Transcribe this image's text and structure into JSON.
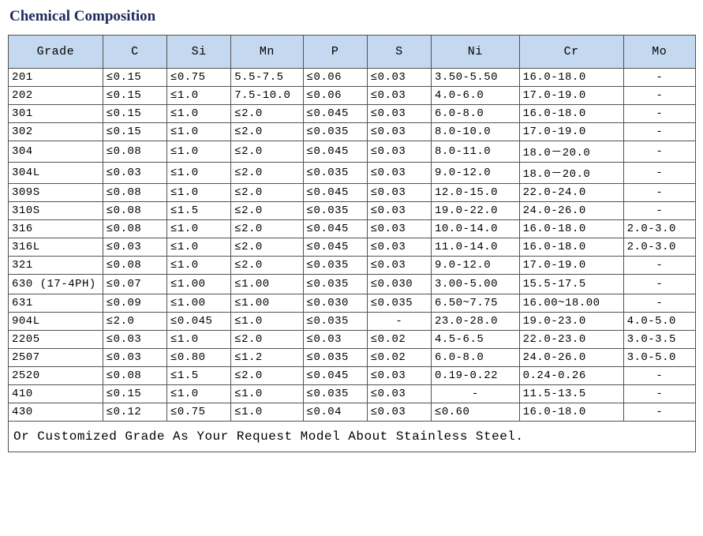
{
  "title": "Chemical Composition",
  "footer": "Or Customized Grade As Your Request Model About Stainless Steel.",
  "columns": [
    "Grade",
    "C",
    "Si",
    "Mn",
    "P",
    "S",
    "Ni",
    "Cr",
    "Mo"
  ],
  "rows": [
    {
      "g": "201",
      "c": "≤0.15",
      "si": "≤0.75",
      "mn": "5.5-7.5",
      "p": "≤0.06",
      "s": "≤0.03",
      "ni": "3.50-5.50",
      "cr": "16.0-18.0",
      "mo": "-"
    },
    {
      "g": "202",
      "c": "≤0.15",
      "si": "≤1.0",
      "mn": "7.5-10.0",
      "p": "≤0.06",
      "s": "≤0.03",
      "ni": "4.0-6.0",
      "cr": "17.0-19.0",
      "mo": "-"
    },
    {
      "g": "301",
      "c": "≤0.15",
      "si": "≤1.0",
      "mn": "≤2.0",
      "p": "≤0.045",
      "s": "≤0.03",
      "ni": "6.0-8.0",
      "cr": "16.0-18.0",
      "mo": "-"
    },
    {
      "g": "302",
      "c": "≤0.15",
      "si": "≤1.0",
      "mn": "≤2.0",
      "p": "≤0.035",
      "s": "≤0.03",
      "ni": "8.0-10.0",
      "cr": "17.0-19.0",
      "mo": "-"
    },
    {
      "g": "304",
      "c": "≤0.08",
      "si": "≤1.0",
      "mn": "≤2.0",
      "p": "≤0.045",
      "s": "≤0.03",
      "ni": "8.0-11.0",
      "cr": "18.0－20.0",
      "mo": "-"
    },
    {
      "g": "304L",
      "c": "≤0.03",
      "si": "≤1.0",
      "mn": "≤2.0",
      "p": "≤0.035",
      "s": "≤0.03",
      "ni": "9.0-12.0",
      "cr": "18.0－20.0",
      "mo": "-"
    },
    {
      "g": "309S",
      "c": "≤0.08",
      "si": "≤1.0",
      "mn": "≤2.0",
      "p": "≤0.045",
      "s": "≤0.03",
      "ni": "12.0-15.0",
      "cr": "22.0-24.0",
      "mo": "-"
    },
    {
      "g": "310S",
      "c": "≤0.08",
      "si": "≤1.5",
      "mn": "≤2.0",
      "p": "≤0.035",
      "s": "≤0.03",
      "ni": "19.0-22.0",
      "cr": "24.0-26.0",
      "mo": "-"
    },
    {
      "g": "316",
      "c": "≤0.08",
      "si": "≤1.0",
      "mn": "≤2.0",
      "p": "≤0.045",
      "s": "≤0.03",
      "ni": "10.0-14.0",
      "cr": "16.0-18.0",
      "mo": "2.0-3.0"
    },
    {
      "g": "316L",
      "c": "≤0.03",
      "si": "≤1.0",
      "mn": "≤2.0",
      "p": "≤0.045",
      "s": "≤0.03",
      "ni": "11.0-14.0",
      "cr": "16.0-18.0",
      "mo": "2.0-3.0"
    },
    {
      "g": "321",
      "c": "≤0.08",
      "si": "≤1.0",
      "mn": "≤2.0",
      "p": "≤0.035",
      "s": "≤0.03",
      "ni": "9.0-12.0",
      "cr": "17.0-19.0",
      "mo": "-"
    },
    {
      "g": "630 (17-4PH)",
      "c": "≤0.07",
      "si": "≤1.00",
      "mn": "≤1.00",
      "p": "≤0.035",
      "s": "≤0.030",
      "ni": "3.00-5.00",
      "cr": "15.5-17.5",
      "mo": "-",
      "wrap": true
    },
    {
      "g": "631",
      "c": "≤0.09",
      "si": "≤1.00",
      "mn": "≤1.00",
      "p": "≤0.030",
      "s": "≤0.035",
      "ni": "6.50~7.75",
      "cr": "16.00~18.00",
      "mo": "-"
    },
    {
      "g": "904L",
      "c": "≤2.0",
      "si": "≤0.045",
      "mn": "≤1.0",
      "p": "≤0.035",
      "s": "-",
      "ni": "23.0-28.0",
      "cr": "19.0-23.0",
      "mo": "4.0-5.0"
    },
    {
      "g": "2205",
      "c": "≤0.03",
      "si": "≤1.0",
      "mn": "≤2.0",
      "p": "≤0.03",
      "s": "≤0.02",
      "ni": "4.5-6.5",
      "cr": "22.0-23.0",
      "mo": "3.0-3.5"
    },
    {
      "g": "2507",
      "c": "≤0.03",
      "si": "≤0.80",
      "mn": "≤1.2",
      "p": "≤0.035",
      "s": "≤0.02",
      "ni": "6.0-8.0",
      "cr": "24.0-26.0",
      "mo": "3.0-5.0"
    },
    {
      "g": "2520",
      "c": "≤0.08",
      "si": "≤1.5",
      "mn": "≤2.0",
      "p": "≤0.045",
      "s": "≤0.03",
      "ni": "0.19-0.22",
      "cr": "0.24-0.26",
      "mo": "-"
    },
    {
      "g": "410",
      "c": "≤0.15",
      "si": "≤1.0",
      "mn": "≤1.0",
      "p": "≤0.035",
      "s": "≤0.03",
      "ni": "-",
      "cr": "11.5-13.5",
      "mo": "-"
    },
    {
      "g": "430",
      "c": "≤0.12",
      "si": "≤0.75",
      "mn": "≤1.0",
      "p": "≤0.04",
      "s": "≤0.03",
      "ni": "≤0.60",
      "cr": "16.0-18.0",
      "mo": "-"
    }
  ],
  "style": {
    "title_color": "#1d2a5e",
    "header_bg": "#c4d8ef",
    "border_color": "#525252",
    "font": "Courier New",
    "font_size_header": 15,
    "font_size_cell": 14
  }
}
